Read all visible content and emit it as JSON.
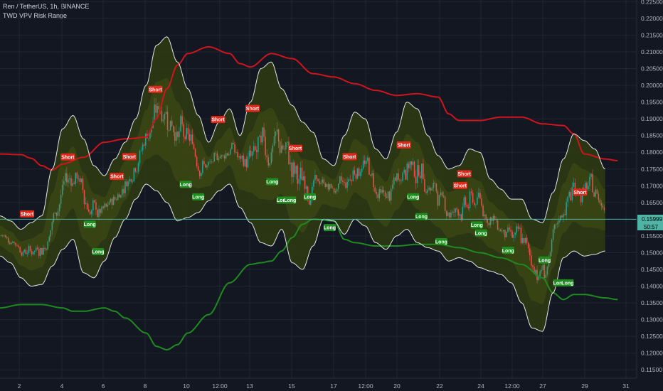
{
  "header": {
    "symbol_line": "Ren / TetherUS, 1h, BINANCE",
    "indicator": "TWD VPV Risk Range"
  },
  "price_badge": {
    "value": "0.15999",
    "countdown": "50:57"
  },
  "colors": {
    "background": "#131722",
    "grid": "#1f2533",
    "upper_band": "#d0141c",
    "lower_band": "#1f8a1f",
    "envelope": "#e6e6e6",
    "fill": "#2f3b12",
    "candle_up": "#26a69a",
    "candle_down": "#ef5350",
    "short_label": "#e0281b",
    "long_label": "#1e8c1e",
    "price_line": "#4fb3a6"
  },
  "chart_data": {
    "type": "line",
    "x_ticks": [
      "2",
      "4",
      "6",
      "8",
      "10",
      "12:00",
      "13",
      "15",
      "17",
      "12:00",
      "20",
      "22",
      "24",
      "12:00",
      "27",
      "29",
      "31"
    ],
    "y_ticks": [
      "0.22500",
      "0.22000",
      "0.21500",
      "0.21000",
      "0.20500",
      "0.20000",
      "0.19500",
      "0.19000",
      "0.18500",
      "0.18000",
      "0.17500",
      "0.17000",
      "0.16500",
      "0.16000",
      "0.15500",
      "0.15000",
      "0.14500",
      "0.14000",
      "0.13500",
      "0.13000",
      "0.12500",
      "0.12000",
      "0.11500"
    ],
    "ylim": [
      0.1125,
      0.2255
    ],
    "xlim": [
      0,
      30
    ],
    "last_price": 0.15999,
    "upper_band": [
      [
        0,
        0.1795
      ],
      [
        1,
        0.1793
      ],
      [
        1.5,
        0.1782
      ],
      [
        2,
        0.176
      ],
      [
        2.5,
        0.1747
      ],
      [
        3,
        0.1765
      ],
      [
        4,
        0.1785
      ],
      [
        5,
        0.183
      ],
      [
        6,
        0.184
      ],
      [
        7,
        0.1845
      ],
      [
        7.5,
        0.19
      ],
      [
        8,
        0.199
      ],
      [
        8.5,
        0.206
      ],
      [
        9,
        0.2095
      ],
      [
        10,
        0.2115
      ],
      [
        11,
        0.2095
      ],
      [
        11.5,
        0.2065
      ],
      [
        12,
        0.2055
      ],
      [
        13,
        0.2095
      ],
      [
        14,
        0.208
      ],
      [
        15,
        0.2035
      ],
      [
        16,
        0.2025
      ],
      [
        17,
        0.2005
      ],
      [
        18,
        0.1985
      ],
      [
        19,
        0.197
      ],
      [
        20,
        0.1975
      ],
      [
        21,
        0.1965
      ],
      [
        21.5,
        0.1915
      ],
      [
        22,
        0.1895
      ],
      [
        23,
        0.1895
      ],
      [
        24,
        0.1905
      ],
      [
        25,
        0.1905
      ],
      [
        26,
        0.1885
      ],
      [
        27,
        0.188
      ],
      [
        27.5,
        0.1855
      ],
      [
        28,
        0.1795
      ],
      [
        29,
        0.178
      ],
      [
        29.6,
        0.1775
      ]
    ],
    "lower_band": [
      [
        0,
        0.1335
      ],
      [
        1,
        0.1345
      ],
      [
        2,
        0.1345
      ],
      [
        3,
        0.1335
      ],
      [
        3.5,
        0.1325
      ],
      [
        4,
        0.1325
      ],
      [
        5,
        0.1335
      ],
      [
        5.5,
        0.1325
      ],
      [
        6,
        0.1305
      ],
      [
        7,
        0.126
      ],
      [
        7.5,
        0.122
      ],
      [
        8,
        0.121
      ],
      [
        8.5,
        0.1225
      ],
      [
        9,
        0.126
      ],
      [
        10,
        0.1315
      ],
      [
        11,
        0.141
      ],
      [
        12,
        0.1465
      ],
      [
        12.5,
        0.147
      ],
      [
        13,
        0.1475
      ],
      [
        13.5,
        0.1505
      ],
      [
        14,
        0.1545
      ],
      [
        14.5,
        0.1585
      ],
      [
        15,
        0.16
      ],
      [
        16,
        0.1595
      ],
      [
        16.5,
        0.154
      ],
      [
        17,
        0.153
      ],
      [
        18,
        0.152
      ],
      [
        19,
        0.152
      ],
      [
        20,
        0.1525
      ],
      [
        21,
        0.1525
      ],
      [
        22,
        0.1515
      ],
      [
        23,
        0.15
      ],
      [
        24,
        0.1485
      ],
      [
        25,
        0.1465
      ],
      [
        26,
        0.1425
      ],
      [
        26.5,
        0.138
      ],
      [
        27,
        0.136
      ],
      [
        27.5,
        0.1375
      ],
      [
        28,
        0.1375
      ],
      [
        29,
        0.1365
      ],
      [
        29.6,
        0.136
      ]
    ],
    "envelope_high": [
      [
        0,
        0.161
      ],
      [
        0.5,
        0.1595
      ],
      [
        1,
        0.157
      ],
      [
        1.5,
        0.159
      ],
      [
        2,
        0.161
      ],
      [
        2.5,
        0.175
      ],
      [
        3,
        0.187
      ],
      [
        3.5,
        0.191
      ],
      [
        4,
        0.184
      ],
      [
        4.5,
        0.176
      ],
      [
        5,
        0.173
      ],
      [
        5.5,
        0.178
      ],
      [
        6,
        0.183
      ],
      [
        6.5,
        0.19
      ],
      [
        7,
        0.2
      ],
      [
        7.5,
        0.212
      ],
      [
        8,
        0.2145
      ],
      [
        8.5,
        0.207
      ],
      [
        9,
        0.199
      ],
      [
        9.5,
        0.191
      ],
      [
        10,
        0.183
      ],
      [
        10.5,
        0.189
      ],
      [
        11,
        0.193
      ],
      [
        11.5,
        0.185
      ],
      [
        12,
        0.195
      ],
      [
        12.5,
        0.205
      ],
      [
        13,
        0.207
      ],
      [
        13.5,
        0.199
      ],
      [
        14,
        0.194
      ],
      [
        14.5,
        0.189
      ],
      [
        15,
        0.186
      ],
      [
        15.5,
        0.178
      ],
      [
        16,
        0.176
      ],
      [
        16.5,
        0.185
      ],
      [
        17,
        0.192
      ],
      [
        17.5,
        0.19
      ],
      [
        18,
        0.181
      ],
      [
        18.5,
        0.178
      ],
      [
        19,
        0.186
      ],
      [
        19.5,
        0.195
      ],
      [
        20,
        0.193
      ],
      [
        20.5,
        0.185
      ],
      [
        21,
        0.179
      ],
      [
        21.5,
        0.175
      ],
      [
        22,
        0.176
      ],
      [
        22.5,
        0.181
      ],
      [
        23,
        0.18
      ],
      [
        23.5,
        0.172
      ],
      [
        24,
        0.169
      ],
      [
        24.5,
        0.166
      ],
      [
        25,
        0.166
      ],
      [
        25.5,
        0.16
      ],
      [
        26,
        0.159
      ],
      [
        26.5,
        0.168
      ],
      [
        27,
        0.178
      ],
      [
        27.5,
        0.1855
      ],
      [
        28,
        0.1835
      ],
      [
        28.5,
        0.181
      ],
      [
        29,
        0.175
      ]
    ],
    "envelope_low": [
      [
        0,
        0.149
      ],
      [
        0.5,
        0.147
      ],
      [
        1,
        0.1425
      ],
      [
        1.5,
        0.14
      ],
      [
        2,
        0.1405
      ],
      [
        2.5,
        0.146
      ],
      [
        3,
        0.151
      ],
      [
        3.5,
        0.154
      ],
      [
        4,
        0.144
      ],
      [
        4.5,
        0.1425
      ],
      [
        5,
        0.1475
      ],
      [
        5.5,
        0.1545
      ],
      [
        6,
        0.16
      ],
      [
        6.5,
        0.166
      ],
      [
        7,
        0.1705
      ],
      [
        7.5,
        0.1685
      ],
      [
        8,
        0.165
      ],
      [
        8.5,
        0.1595
      ],
      [
        9,
        0.1605
      ],
      [
        9.5,
        0.162
      ],
      [
        10,
        0.1655
      ],
      [
        10.5,
        0.1685
      ],
      [
        11,
        0.1705
      ],
      [
        11.5,
        0.1635
      ],
      [
        12,
        0.159
      ],
      [
        12.5,
        0.153
      ],
      [
        13,
        0.152
      ],
      [
        13.5,
        0.157
      ],
      [
        14,
        0.147
      ],
      [
        14.5,
        0.145
      ],
      [
        15,
        0.152
      ],
      [
        15.5,
        0.16
      ],
      [
        16,
        0.1595
      ],
      [
        16.5,
        0.1555
      ],
      [
        17,
        0.16
      ],
      [
        17.5,
        0.158
      ],
      [
        18,
        0.153
      ],
      [
        18.5,
        0.151
      ],
      [
        19,
        0.155
      ],
      [
        19.5,
        0.157
      ],
      [
        20,
        0.153
      ],
      [
        20.5,
        0.1515
      ],
      [
        21,
        0.1505
      ],
      [
        21.5,
        0.1475
      ],
      [
        22,
        0.1485
      ],
      [
        22.5,
        0.1475
      ],
      [
        23,
        0.1455
      ],
      [
        23.5,
        0.1445
      ],
      [
        24,
        0.1435
      ],
      [
        24.5,
        0.141
      ],
      [
        25,
        0.135
      ],
      [
        25.5,
        0.1275
      ],
      [
        26,
        0.1265
      ],
      [
        26.5,
        0.138
      ],
      [
        27,
        0.1485
      ],
      [
        27.5,
        0.1505
      ],
      [
        28,
        0.149
      ],
      [
        28.5,
        0.1495
      ],
      [
        29,
        0.1505
      ]
    ],
    "signals": [
      {
        "type": "Short",
        "x": 1.3,
        "y": 0.1616
      },
      {
        "type": "Short",
        "x": 3.25,
        "y": 0.1786
      },
      {
        "type": "Long",
        "x": 4.3,
        "y": 0.1585
      },
      {
        "type": "Long",
        "x": 4.7,
        "y": 0.1503
      },
      {
        "type": "Short",
        "x": 5.6,
        "y": 0.1728
      },
      {
        "type": "Short",
        "x": 6.2,
        "y": 0.1787
      },
      {
        "type": "Short",
        "x": 7.45,
        "y": 0.1988
      },
      {
        "type": "Long",
        "x": 8.9,
        "y": 0.1704
      },
      {
        "type": "Long",
        "x": 9.5,
        "y": 0.1667
      },
      {
        "type": "Short",
        "x": 10.45,
        "y": 0.1898
      },
      {
        "type": "Short",
        "x": 12.1,
        "y": 0.1931
      },
      {
        "type": "Long",
        "x": 13.05,
        "y": 0.1712
      },
      {
        "type": "Long",
        "x": 13.55,
        "y": 0.1657
      },
      {
        "type": "Long",
        "x": 13.9,
        "y": 0.1657
      },
      {
        "type": "Short",
        "x": 14.15,
        "y": 0.1812
      },
      {
        "type": "Long",
        "x": 14.85,
        "y": 0.1667
      },
      {
        "type": "Long",
        "x": 15.8,
        "y": 0.1575
      },
      {
        "type": "Short",
        "x": 16.75,
        "y": 0.1787
      },
      {
        "type": "Short",
        "x": 19.35,
        "y": 0.1822
      },
      {
        "type": "Long",
        "x": 19.8,
        "y": 0.1667
      },
      {
        "type": "Long",
        "x": 20.2,
        "y": 0.1608
      },
      {
        "type": "Long",
        "x": 21.15,
        "y": 0.1533
      },
      {
        "type": "Short",
        "x": 22.05,
        "y": 0.1701
      },
      {
        "type": "Short",
        "x": 22.25,
        "y": 0.1736
      },
      {
        "type": "Long",
        "x": 22.85,
        "y": 0.1583
      },
      {
        "type": "Long",
        "x": 23.05,
        "y": 0.1559
      },
      {
        "type": "Long",
        "x": 24.35,
        "y": 0.1507
      },
      {
        "type": "Long",
        "x": 26.1,
        "y": 0.1478
      },
      {
        "type": "Long",
        "x": 26.8,
        "y": 0.141
      },
      {
        "type": "Long",
        "x": 27.2,
        "y": 0.141
      },
      {
        "type": "Short",
        "x": 27.8,
        "y": 0.1681
      }
    ]
  }
}
